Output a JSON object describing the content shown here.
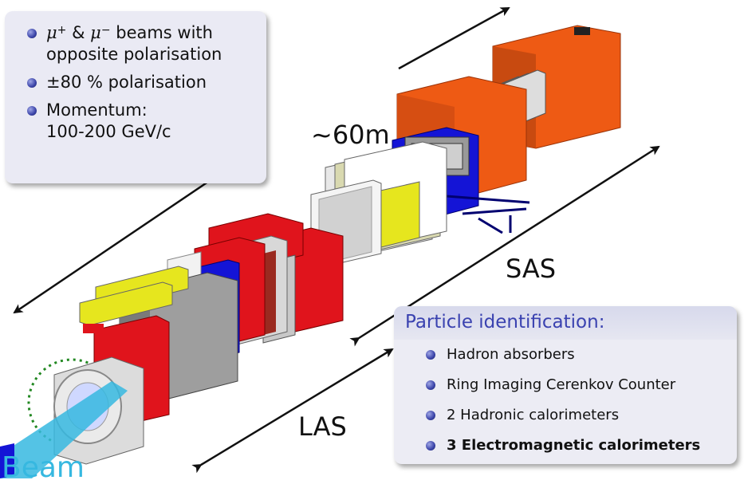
{
  "info_box": {
    "items": [
      {
        "mu_symbol": "μ",
        "plus_sup": "+",
        "amp": "&",
        "minus_sup": "−",
        "line1_rest": "beams with",
        "line2": "opposite polarisation"
      },
      {
        "pm_symbol": "±",
        "text": "80 % polarisation"
      },
      {
        "line1": "Momentum:",
        "line2": "100-200 GeV/c"
      }
    ]
  },
  "labels": {
    "length": "~60m",
    "sas": "SAS",
    "las": "LAS",
    "beam": "Beam"
  },
  "pid_box": {
    "header": "Particle identification:",
    "items": [
      "Hadron absorbers",
      "Ring Imaging Cerenkov Counter",
      "2 Hadronic calorimeters",
      "3 Electromagnetic calorimeters"
    ]
  },
  "colors": {
    "accent": "#3a42b0",
    "beam": "#36b8e0",
    "magnet_red": "#e0141c",
    "calorimeter_orange": "#ee5a14",
    "yellow": "#e6e61e",
    "blue": "#1414d6"
  }
}
